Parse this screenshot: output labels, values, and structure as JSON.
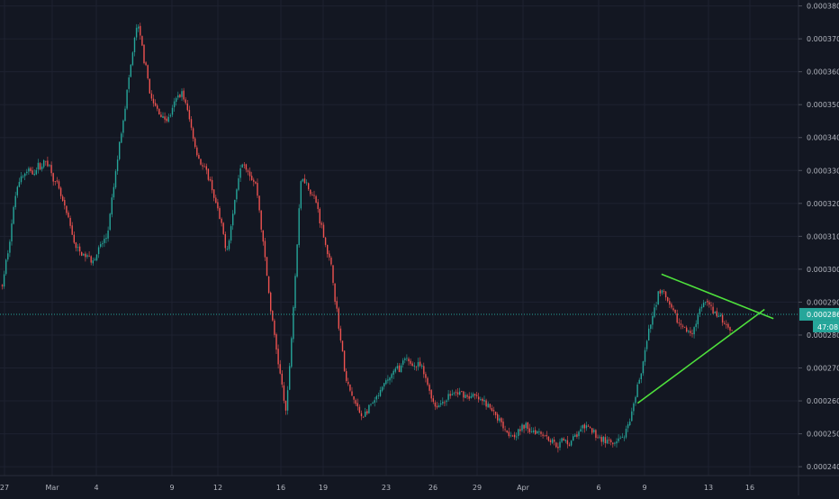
{
  "chart_data": {
    "type": "candlestick",
    "title": "",
    "xlabel": "",
    "ylabel": "",
    "ylim": [
      0.0002373,
      0.0003818
    ],
    "x_tick_labels": [
      "27",
      "Mar",
      "4",
      "9",
      "12",
      "16",
      "19",
      "23",
      "26",
      "29",
      "Apr",
      "6",
      "9",
      "13",
      "16"
    ],
    "y_tick_labels": [
      "0.0002400",
      "0.0002500",
      "0.0002600",
      "0.0002700",
      "0.0002800",
      "0.0002900",
      "0.0003000",
      "0.0003100",
      "0.0003200",
      "0.0003300",
      "0.0003400",
      "0.0003500",
      "0.0003600",
      "0.0003700",
      "0.0003800"
    ],
    "y_tick_values": [
      0.00024,
      0.00025,
      0.00026,
      0.00027,
      0.00028,
      0.00029,
      0.0003,
      0.00031,
      0.00032,
      0.00033,
      0.00034,
      0.00035,
      0.00036,
      0.00037,
      0.00038
    ],
    "price_series": {
      "x_day": [
        0,
        1,
        2,
        3,
        4,
        5,
        6,
        7,
        8,
        9,
        10,
        11,
        12,
        13,
        14,
        15,
        16,
        17,
        18,
        19,
        20,
        21,
        22,
        23,
        24,
        25,
        26,
        27,
        28,
        29,
        30,
        31,
        32,
        33,
        34,
        35,
        36,
        37,
        38,
        39,
        40,
        41,
        42,
        43,
        44,
        45,
        46,
        47,
        48,
        49,
        50
      ],
      "value": [
        0.000295,
        0.000328,
        0.00033,
        0.000333,
        0.00032,
        0.000305,
        0.000303,
        0.00031,
        0.000345,
        0.000375,
        0.00035,
        0.000345,
        0.000355,
        0.000335,
        0.000325,
        0.000305,
        0.000335,
        0.000325,
        0.000285,
        0.000255,
        0.00033,
        0.00032,
        0.0003,
        0.000265,
        0.000255,
        0.00026,
        0.000268,
        0.000272,
        0.00027,
        0.000258,
        0.000262,
        0.000262,
        0.00026,
        0.000256,
        0.00025,
        0.000252,
        0.000251,
        0.000247,
        0.000248,
        0.000252,
        0.000249,
        0.000246,
        0.000252,
        0.000275,
        0.000295,
        0.000285,
        0.00028,
        0.00029,
        0.000285,
        0.000281,
        0.000286
      ]
    },
    "current_price": {
      "label": "0.0002863",
      "value": 0.0002863
    },
    "countdown": {
      "label": "47:08"
    },
    "trendlines": [
      {
        "name": "upper",
        "start": {
          "x_day": 44.2,
          "y": 0.0002985
        },
        "end": {
          "x_day": 51.7,
          "y": 0.000285
        }
      },
      {
        "name": "lower",
        "start": {
          "x_day": 42.6,
          "y": 0.0002593
        },
        "end": {
          "x_day": 51.1,
          "y": 0.0002878
        }
      }
    ],
    "colors": {
      "background": "#131722",
      "grid": "#1e2230",
      "axis_text": "#b2b5be",
      "up": "#26a69a",
      "down": "#ef5350",
      "trendline": "#4ee03c",
      "price_label_bg": "#26a69a",
      "price_label_text": "#ffffff"
    },
    "grid": true,
    "legend": "none"
  }
}
